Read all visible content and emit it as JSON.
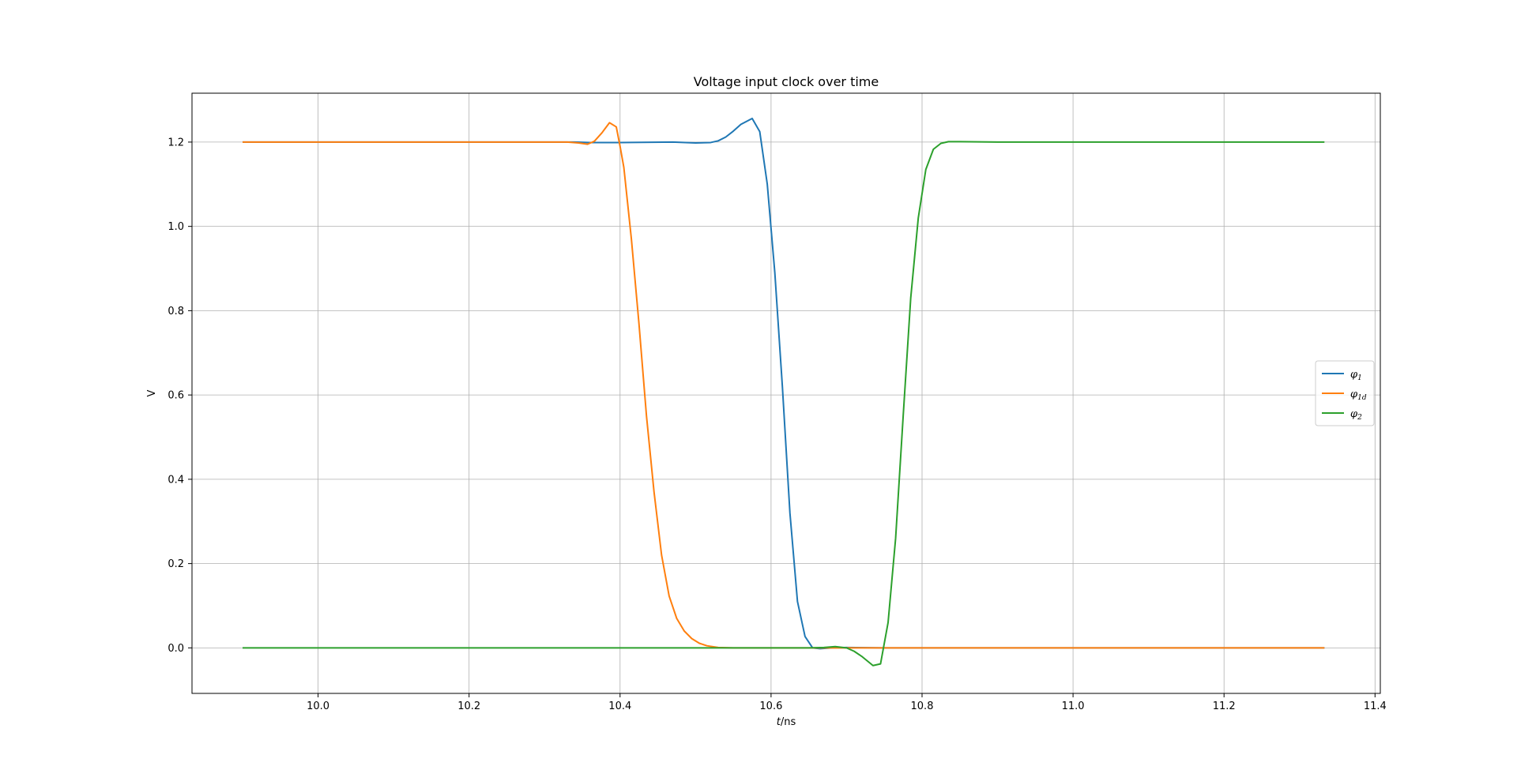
{
  "chart_data": {
    "type": "line",
    "title": "Voltage input clock over time",
    "xlabel": {
      "var": "t",
      "unit": "/ns"
    },
    "ylabel": "V",
    "xlim": [
      9.833,
      11.407
    ],
    "ylim": [
      -0.108,
      1.316
    ],
    "xticks": [
      10.0,
      10.2,
      10.4,
      10.6,
      10.8,
      11.0,
      11.2,
      11.4
    ],
    "xtick_labels": [
      "10.0",
      "10.2",
      "10.4",
      "10.6",
      "10.8",
      "11.0",
      "11.2",
      "11.4"
    ],
    "yticks": [
      0.0,
      0.2,
      0.4,
      0.6,
      0.8,
      1.0,
      1.2
    ],
    "ytick_labels": [
      "0.0",
      "0.2",
      "0.4",
      "0.6",
      "0.8",
      "1.0",
      "1.2"
    ],
    "grid": true,
    "legend": "center-right",
    "series": [
      {
        "name": "φ1",
        "label": {
          "base": "φ",
          "sub": "1"
        },
        "color": "#1f77b4",
        "points": [
          [
            9.9,
            1.2
          ],
          [
            10.2,
            1.2
          ],
          [
            10.34,
            1.2
          ],
          [
            10.36,
            1.199
          ],
          [
            10.4,
            1.199
          ],
          [
            10.47,
            1.2
          ],
          [
            10.5,
            1.198
          ],
          [
            10.52,
            1.199
          ],
          [
            10.53,
            1.203
          ],
          [
            10.54,
            1.212
          ],
          [
            10.55,
            1.226
          ],
          [
            10.56,
            1.242
          ],
          [
            10.575,
            1.256
          ],
          [
            10.585,
            1.225
          ],
          [
            10.595,
            1.1
          ],
          [
            10.605,
            0.89
          ],
          [
            10.615,
            0.62
          ],
          [
            10.625,
            0.32
          ],
          [
            10.635,
            0.11
          ],
          [
            10.645,
            0.027
          ],
          [
            10.655,
            0.0
          ],
          [
            10.665,
            -0.002
          ],
          [
            10.68,
            0.0
          ],
          [
            10.7,
            0.001
          ],
          [
            10.75,
            0.0
          ],
          [
            11.0,
            0.0
          ],
          [
            11.333,
            0.0
          ]
        ]
      },
      {
        "name": "φ1d",
        "label": {
          "base": "φ",
          "sub": "1d"
        },
        "color": "#ff7f0e",
        "points": [
          [
            9.9,
            1.2
          ],
          [
            10.2,
            1.2
          ],
          [
            10.33,
            1.2
          ],
          [
            10.345,
            1.198
          ],
          [
            10.357,
            1.195
          ],
          [
            10.366,
            1.202
          ],
          [
            10.376,
            1.222
          ],
          [
            10.386,
            1.246
          ],
          [
            10.395,
            1.236
          ],
          [
            10.4,
            1.19
          ],
          [
            10.405,
            1.14
          ],
          [
            10.415,
            0.97
          ],
          [
            10.425,
            0.77
          ],
          [
            10.435,
            0.55
          ],
          [
            10.445,
            0.37
          ],
          [
            10.455,
            0.22
          ],
          [
            10.465,
            0.123
          ],
          [
            10.475,
            0.07
          ],
          [
            10.485,
            0.04
          ],
          [
            10.495,
            0.022
          ],
          [
            10.505,
            0.011
          ],
          [
            10.515,
            0.005
          ],
          [
            10.53,
            0.001
          ],
          [
            10.55,
            0.0
          ],
          [
            10.6,
            0.0
          ],
          [
            11.0,
            0.0
          ],
          [
            11.333,
            0.0
          ]
        ]
      },
      {
        "name": "φ2",
        "label": {
          "base": "φ",
          "sub": "2"
        },
        "color": "#2ca02c",
        "points": [
          [
            9.9,
            0.0
          ],
          [
            10.2,
            0.0
          ],
          [
            10.5,
            0.0
          ],
          [
            10.6,
            0.0
          ],
          [
            10.65,
            0.0
          ],
          [
            10.67,
            0.001
          ],
          [
            10.685,
            0.003
          ],
          [
            10.7,
            0.0
          ],
          [
            10.71,
            -0.008
          ],
          [
            10.72,
            -0.02
          ],
          [
            10.735,
            -0.042
          ],
          [
            10.745,
            -0.038
          ],
          [
            10.755,
            0.06
          ],
          [
            10.765,
            0.26
          ],
          [
            10.775,
            0.55
          ],
          [
            10.785,
            0.83
          ],
          [
            10.795,
            1.02
          ],
          [
            10.805,
            1.135
          ],
          [
            10.815,
            1.183
          ],
          [
            10.825,
            1.197
          ],
          [
            10.835,
            1.201
          ],
          [
            10.85,
            1.201
          ],
          [
            10.9,
            1.2
          ],
          [
            11.0,
            1.2
          ],
          [
            11.333,
            1.2
          ]
        ]
      }
    ]
  }
}
